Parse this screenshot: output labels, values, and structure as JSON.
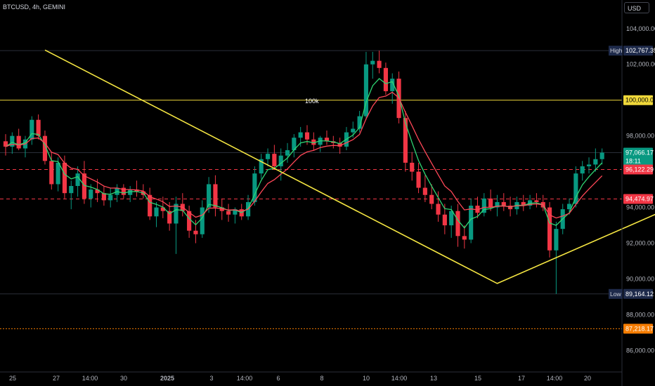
{
  "header": {
    "symbol_line": "BTCUSD, 4h, GEMINI",
    "currency": "USD"
  },
  "chart_data": {
    "type": "candlestick",
    "ylim": [
      84800,
      105600
    ],
    "y_ticks": [
      "86,000.00",
      "88,000.00",
      "90,000.00",
      "92,000.00",
      "94,000.00",
      "98,000.00",
      "102,000.00",
      "104,000.00"
    ],
    "y_tick_values": [
      86000,
      88000,
      90000,
      92000,
      94000,
      98000,
      102000,
      104000
    ],
    "x_ticks": [
      "25",
      "27",
      "14:00",
      "30",
      "2025",
      "3",
      "14:00",
      "6",
      "8",
      "10",
      "14:00",
      "13",
      "15",
      "17",
      "14:00",
      "20"
    ],
    "price_labels": [
      {
        "prefix": "High",
        "text": "102,767.35",
        "value": 102767.35,
        "color": "#1e2a4a",
        "line": "#2a2e39"
      },
      {
        "prefix": "",
        "text": "100,000.00",
        "value": 100000,
        "color": "#f0d83a",
        "line": "#f0d83a"
      },
      {
        "prefix": "",
        "text": "97,066.17",
        "text2": "18:11",
        "value": 97066.17,
        "color": "#089981",
        "line": "#2a2e39"
      },
      {
        "prefix": "",
        "text": "96,122.29",
        "value": 96122.29,
        "color": "#f23645",
        "line": "#f23645"
      },
      {
        "prefix": "",
        "text": "94,474.97",
        "value": 94474.97,
        "color": "#f23645",
        "line": "#f23645"
      },
      {
        "prefix": "Low",
        "text": "89,164.12",
        "value": 89164.12,
        "color": "#1e2a4a",
        "line": "#2a2e39"
      },
      {
        "prefix": "",
        "text": "87,218.17",
        "value": 87218.17,
        "color": "#f57c00",
        "line": "#f57c00"
      }
    ],
    "annotation": {
      "text": "100k",
      "value": 99950
    },
    "pattern_points": [
      [
        102800,
        6
      ],
      [
        89750,
        75
      ],
      [
        93750,
        100
      ],
      [
        89200,
        127
      ],
      [
        102850,
        190
      ]
    ],
    "candles": [
      [
        97700,
        98100,
        96900,
        97400
      ],
      [
        97400,
        98200,
        97000,
        98000
      ],
      [
        98000,
        98400,
        97200,
        97300
      ],
      [
        97300,
        98000,
        96800,
        97800
      ],
      [
        97800,
        99100,
        97500,
        98900
      ],
      [
        98900,
        99200,
        97800,
        98000
      ],
      [
        98000,
        98300,
        96400,
        96600
      ],
      [
        96600,
        97100,
        95000,
        95300
      ],
      [
        95300,
        96800,
        94900,
        96500
      ],
      [
        96500,
        96900,
        94500,
        94800
      ],
      [
        94800,
        95500,
        93900,
        95200
      ],
      [
        95200,
        96300,
        94600,
        95900
      ],
      [
        95900,
        96600,
        94200,
        94500
      ],
      [
        94500,
        95300,
        94000,
        95000
      ],
      [
        95000,
        95600,
        94300,
        94800
      ],
      [
        94800,
        95200,
        94100,
        94400
      ],
      [
        94400,
        95100,
        94000,
        94700
      ],
      [
        94700,
        95300,
        94300,
        95100
      ],
      [
        95100,
        95300,
        94500,
        94700
      ],
      [
        94700,
        95200,
        94300,
        95000
      ],
      [
        95000,
        95500,
        94600,
        94900
      ],
      [
        94900,
        95300,
        94500,
        94700
      ],
      [
        94700,
        95100,
        93300,
        93500
      ],
      [
        93500,
        94300,
        92900,
        94000
      ],
      [
        94000,
        94600,
        93400,
        93800
      ],
      [
        93800,
        94300,
        92700,
        93100
      ],
      [
        93100,
        94600,
        91400,
        94200
      ],
      [
        94200,
        94800,
        93500,
        93800
      ],
      [
        93800,
        94100,
        92300,
        92700
      ],
      [
        92700,
        93300,
        92000,
        92500
      ],
      [
        92500,
        94400,
        92300,
        94000
      ],
      [
        94000,
        95700,
        93700,
        95300
      ],
      [
        95300,
        95800,
        93500,
        94000
      ],
      [
        94000,
        94500,
        93300,
        93800
      ],
      [
        93800,
        94200,
        93200,
        93600
      ],
      [
        93600,
        94000,
        93100,
        93900
      ],
      [
        93900,
        94200,
        93300,
        93500
      ],
      [
        93500,
        94700,
        93300,
        94300
      ],
      [
        94300,
        96300,
        94100,
        95900
      ],
      [
        95900,
        97000,
        95600,
        96700
      ],
      [
        96700,
        97300,
        96300,
        97000
      ],
      [
        97000,
        97500,
        96100,
        96300
      ],
      [
        96300,
        97300,
        95500,
        96900
      ],
      [
        96900,
        97600,
        96500,
        97200
      ],
      [
        97200,
        98100,
        96800,
        97900
      ],
      [
        97900,
        98500,
        97400,
        98200
      ],
      [
        98200,
        98600,
        97500,
        97800
      ],
      [
        97800,
        98200,
        97200,
        97500
      ],
      [
        97500,
        98000,
        97100,
        97900
      ],
      [
        97900,
        98300,
        97500,
        97700
      ],
      [
        97700,
        98000,
        97300,
        97600
      ],
      [
        97600,
        97900,
        97000,
        97400
      ],
      [
        97400,
        98500,
        97200,
        98200
      ],
      [
        98200,
        98800,
        97900,
        98400
      ],
      [
        98400,
        99400,
        98200,
        99100
      ],
      [
        99100,
        102700,
        98900,
        102000
      ],
      [
        102000,
        102700,
        101200,
        102200
      ],
      [
        102200,
        102767,
        101500,
        101800
      ],
      [
        101800,
        102100,
        100300,
        100500
      ],
      [
        100500,
        101500,
        99800,
        101200
      ],
      [
        101200,
        101600,
        98700,
        99000
      ],
      [
        99000,
        99400,
        96000,
        96500
      ],
      [
        96500,
        97100,
        95500,
        96000
      ],
      [
        96000,
        96500,
        94800,
        95100
      ],
      [
        95100,
        95800,
        94300,
        94700
      ],
      [
        94700,
        95300,
        93900,
        94200
      ],
      [
        94200,
        94900,
        93200,
        93600
      ],
      [
        93600,
        94200,
        92500,
        93000
      ],
      [
        93000,
        94100,
        92300,
        93800
      ],
      [
        93800,
        94200,
        91800,
        92400
      ],
      [
        92400,
        93000,
        91700,
        92200
      ],
      [
        92200,
        94500,
        92000,
        94100
      ],
      [
        94100,
        94600,
        93400,
        93700
      ],
      [
        93700,
        94800,
        93500,
        94500
      ],
      [
        94500,
        95000,
        93800,
        94000
      ],
      [
        94000,
        94700,
        93500,
        94300
      ],
      [
        94300,
        94800,
        93800,
        94100
      ],
      [
        94100,
        94600,
        93500,
        93900
      ],
      [
        93900,
        94600,
        93600,
        94300
      ],
      [
        94300,
        94700,
        93800,
        94100
      ],
      [
        94100,
        94700,
        93900,
        94400
      ],
      [
        94400,
        94800,
        94000,
        94300
      ],
      [
        94300,
        94700,
        93800,
        94000
      ],
      [
        94000,
        94300,
        91200,
        91600
      ],
      [
        91600,
        93200,
        89164,
        92800
      ],
      [
        92800,
        94200,
        92500,
        93900
      ],
      [
        93900,
        94500,
        93600,
        94200
      ],
      [
        94200,
        96300,
        94000,
        95900
      ],
      [
        95900,
        96600,
        95500,
        96300
      ],
      [
        96300,
        96800,
        95900,
        96400
      ],
      [
        96400,
        97300,
        96000,
        96700
      ],
      [
        96700,
        97300,
        96400,
        97066
      ]
    ]
  }
}
